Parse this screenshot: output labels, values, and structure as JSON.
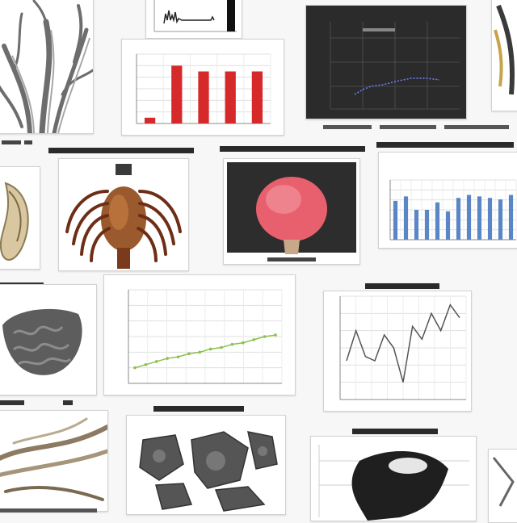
{
  "tiles": [
    {
      "name": "tile-root-illustration",
      "kind": "illustration",
      "subject": "root-structure"
    },
    {
      "name": "tile-top-strip-chart",
      "kind": "chart"
    },
    {
      "name": "tile-red-bar-chart",
      "kind": "chart"
    },
    {
      "name": "tile-dark-scatter-chart",
      "kind": "chart"
    },
    {
      "name": "tile-edge-fragment-right",
      "kind": "illustration"
    },
    {
      "name": "tile-left-shell-illustration",
      "kind": "illustration"
    },
    {
      "name": "tile-ribcage-illustration",
      "kind": "illustration",
      "subject": "ribcage"
    },
    {
      "name": "tile-pink-organ-illustration",
      "kind": "illustration",
      "subject": "organ"
    },
    {
      "name": "tile-blue-bar-chart",
      "kind": "chart"
    },
    {
      "name": "tile-brain-slice-illustration",
      "kind": "illustration",
      "subject": "brain-tissue"
    },
    {
      "name": "tile-green-line-chart",
      "kind": "chart"
    },
    {
      "name": "tile-black-line-chart",
      "kind": "chart"
    },
    {
      "name": "tile-fiber-illustration",
      "kind": "illustration",
      "subject": "fibers"
    },
    {
      "name": "tile-tissue-fragments-illustration",
      "kind": "illustration",
      "subject": "tissue-fragments"
    },
    {
      "name": "tile-dark-mass-illustration",
      "kind": "illustration"
    }
  ],
  "colors": {
    "red_bars": "#d62a2a",
    "blue_bars": "#5b86c6",
    "green_line": "#8cc04e",
    "dark_panel": "#2d2d2d",
    "pink_organ": "#e8606e",
    "rib_brown": "#7a3b1c",
    "brain_gray": "#5d5d5d",
    "text_smudge": "#333333"
  },
  "chart_data": [
    {
      "type": "bar",
      "values": [
        1,
        10,
        9,
        9,
        9
      ],
      "ylim": [
        0,
        12
      ],
      "grid": true
    },
    {
      "type": "bar",
      "values": [
        5.2,
        5.8,
        4.0,
        4.0,
        5.0,
        3.8,
        5.6,
        6.0,
        5.8,
        5.6,
        5.4,
        6.0
      ],
      "ylim": [
        0,
        8
      ],
      "grid": true
    },
    {
      "type": "line",
      "values": [
        1.0,
        1.2,
        1.4,
        1.6,
        1.7,
        1.9,
        2.0,
        2.2,
        2.3,
        2.5,
        2.6,
        2.8,
        3.0,
        3.1
      ],
      "ylim": [
        0,
        6
      ],
      "grid": true
    },
    {
      "type": "line",
      "values": [
        4.5,
        8.0,
        5.0,
        4.5,
        7.5,
        6.0,
        2.0,
        8.5,
        7.0,
        10.0,
        8.0,
        11.0,
        9.5
      ],
      "ylim": [
        0,
        12
      ],
      "grid": true
    }
  ]
}
